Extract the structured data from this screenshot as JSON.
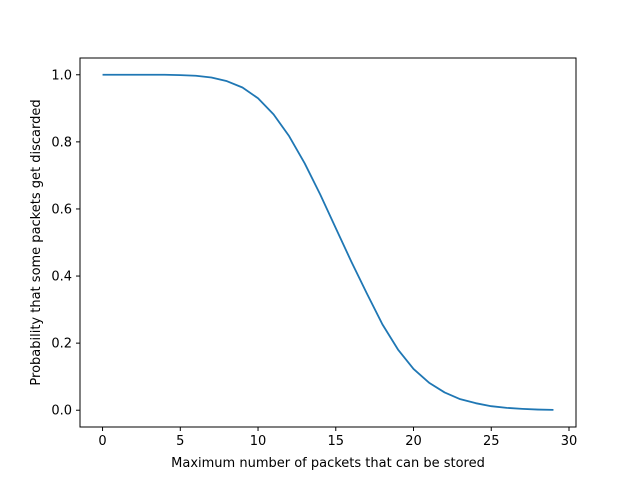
{
  "chart_data": {
    "type": "line",
    "title": "",
    "xlabel": "Maximum number of packets that can be stored",
    "ylabel": "Probability that some packets get discarded",
    "xlim": [
      -1.45,
      30.45
    ],
    "ylim": [
      -0.05,
      1.05
    ],
    "xticks": [
      0,
      5,
      10,
      15,
      20,
      25,
      30
    ],
    "xtick_labels": [
      "0",
      "5",
      "10",
      "15",
      "20",
      "25",
      "30"
    ],
    "yticks": [
      0.0,
      0.2,
      0.4,
      0.6,
      0.8,
      1.0
    ],
    "ytick_labels": [
      "0.0",
      "0.2",
      "0.4",
      "0.6",
      "0.8",
      "1.0"
    ],
    "grid": false,
    "series": [
      {
        "color": "#1f77b4",
        "x": [
          0,
          1,
          2,
          3,
          4,
          5,
          6,
          7,
          8,
          9,
          10,
          11,
          12,
          13,
          14,
          15,
          16,
          17,
          18,
          19,
          20,
          21,
          22,
          23,
          24,
          25,
          26,
          27,
          28,
          29
        ],
        "values": [
          1.0,
          1.0,
          1.0,
          1.0,
          1.0,
          0.999,
          0.997,
          0.992,
          0.981,
          0.962,
          0.93,
          0.882,
          0.817,
          0.736,
          0.643,
          0.543,
          0.443,
          0.348,
          0.256,
          0.181,
          0.123,
          0.082,
          0.053,
          0.033,
          0.021,
          0.012,
          0.007,
          0.004,
          0.002,
          0.001
        ]
      }
    ]
  }
}
